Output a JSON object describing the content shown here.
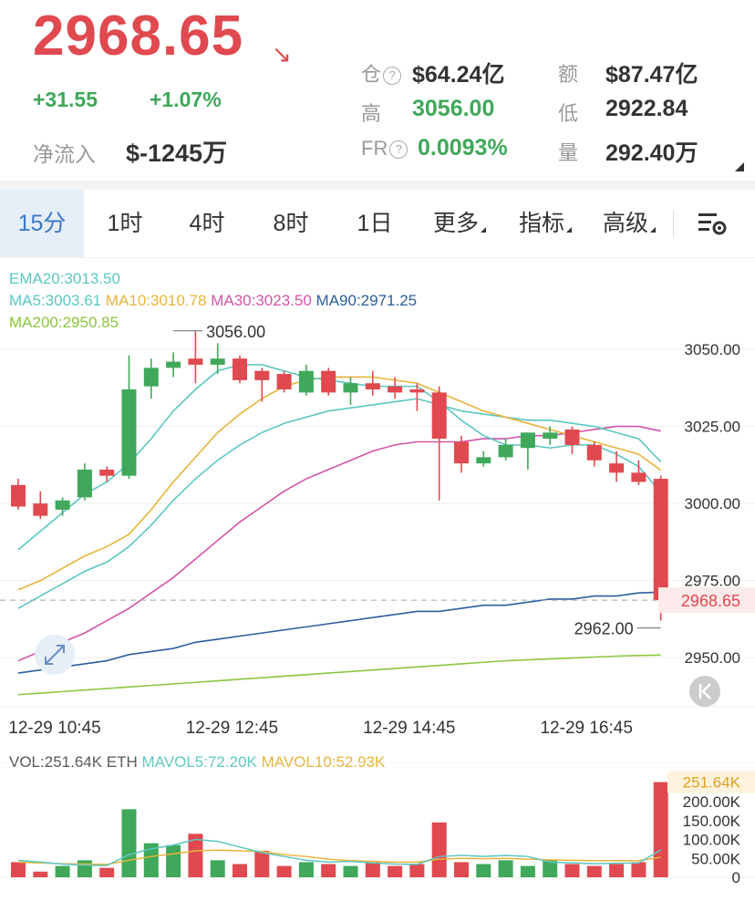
{
  "header": {
    "price": "2968.65",
    "change_abs": "+31.55",
    "change_pct": "+1.07%",
    "net_inflow_label": "净流入",
    "net_inflow_value": "$-1245万"
  },
  "stats": {
    "oi_label": "仓",
    "oi_value": "$64.24亿",
    "amount_label": "额",
    "amount_value": "$87.47亿",
    "high_label": "高",
    "high_value": "3056.00",
    "low_label": "低",
    "low_value": "2922.84",
    "fr_label": "FR",
    "fr_value": "0.0093%",
    "volume_label": "量",
    "volume_value": "292.40万",
    "help_glyph": "?"
  },
  "tabs": [
    {
      "label": "15分",
      "active": true
    },
    {
      "label": "1时"
    },
    {
      "label": "4时"
    },
    {
      "label": "8时"
    },
    {
      "label": "1日"
    },
    {
      "label": "更多",
      "dropdown": true
    },
    {
      "label": "指标",
      "dropdown": true
    },
    {
      "label": "高级",
      "dropdown": true
    }
  ],
  "indicators": {
    "ema20": "EMA20:3013.50",
    "ma5": "MA5:3003.61",
    "ma10": "MA10:3010.78",
    "ma30": "MA30:3023.50",
    "ma90": "MA90:2971.25",
    "ma200": "MA200:2950.85"
  },
  "volume_header": {
    "vol": "VOL:251.64K ETH",
    "mavol5": "MAVOL5:72.20K",
    "mavol10": "MAVOL10:52.93K"
  },
  "colors": {
    "up": "#3fa85a",
    "down": "#e0494f",
    "ema20": "#5bc7c2",
    "ma10": "#e8b43a",
    "ma30": "#d354a8",
    "ma90": "#2b5fa0",
    "ma200": "#8cc63f",
    "accent": "#3a78c4"
  },
  "chart_data": {
    "type": "candlestick",
    "y_ticks": [
      "3050.00",
      "3025.00",
      "3000.00",
      "2975.00",
      "2950.00"
    ],
    "ylim": [
      2940,
      3058
    ],
    "x_tick_labels": [
      "12-29 10:45",
      "12-29 12:45",
      "12-29 14:45",
      "12-29 16:45"
    ],
    "current_price_label": "2968.65",
    "current_price": 2968.65,
    "high_marker": {
      "label": "3056.00",
      "value": 3056.0
    },
    "low_marker": {
      "label": "2962.00",
      "value": 2962.0
    },
    "candles": [
      {
        "o": 3006,
        "h": 3008,
        "l": 2998,
        "c": 2999
      },
      {
        "o": 3000,
        "h": 3004,
        "l": 2995,
        "c": 2996
      },
      {
        "o": 2998,
        "h": 3002,
        "l": 2996,
        "c": 3001
      },
      {
        "o": 3002,
        "h": 3013,
        "l": 3001,
        "c": 3011
      },
      {
        "o": 3011,
        "h": 3012,
        "l": 3007,
        "c": 3009
      },
      {
        "o": 3009,
        "h": 3048,
        "l": 3008,
        "c": 3037
      },
      {
        "o": 3038,
        "h": 3047,
        "l": 3034,
        "c": 3044
      },
      {
        "o": 3044,
        "h": 3049,
        "l": 3041,
        "c": 3046
      },
      {
        "o": 3047,
        "h": 3056,
        "l": 3039,
        "c": 3045
      },
      {
        "o": 3045,
        "h": 3052,
        "l": 3042,
        "c": 3047
      },
      {
        "o": 3047,
        "h": 3048,
        "l": 3039,
        "c": 3040
      },
      {
        "o": 3043,
        "h": 3044,
        "l": 3033,
        "c": 3040
      },
      {
        "o": 3042,
        "h": 3043,
        "l": 3036,
        "c": 3037
      },
      {
        "o": 3036,
        "h": 3045,
        "l": 3035,
        "c": 3043
      },
      {
        "o": 3043,
        "h": 3044,
        "l": 3035,
        "c": 3036
      },
      {
        "o": 3036,
        "h": 3041,
        "l": 3032,
        "c": 3039
      },
      {
        "o": 3039,
        "h": 3043,
        "l": 3035,
        "c": 3037
      },
      {
        "o": 3038,
        "h": 3041,
        "l": 3034,
        "c": 3036
      },
      {
        "o": 3037,
        "h": 3039,
        "l": 3030,
        "c": 3036
      },
      {
        "o": 3036,
        "h": 3038,
        "l": 3001,
        "c": 3021
      },
      {
        "o": 3020,
        "h": 3022,
        "l": 3010,
        "c": 3013
      },
      {
        "o": 3013,
        "h": 3017,
        "l": 3012,
        "c": 3015
      },
      {
        "o": 3015,
        "h": 3021,
        "l": 3014,
        "c": 3019
      },
      {
        "o": 3018,
        "h": 3023,
        "l": 3011,
        "c": 3023
      },
      {
        "o": 3021,
        "h": 3025,
        "l": 3019,
        "c": 3023
      },
      {
        "o": 3024,
        "h": 3025,
        "l": 3016,
        "c": 3019
      },
      {
        "o": 3019,
        "h": 3020,
        "l": 3012,
        "c": 3014
      },
      {
        "o": 3013,
        "h": 3017,
        "l": 3007,
        "c": 3010
      },
      {
        "o": 3010,
        "h": 3014,
        "l": 3006,
        "c": 3007
      },
      {
        "o": 3008,
        "h": 3009,
        "l": 2962,
        "c": 2968.65
      }
    ],
    "lines": {
      "ma5": [
        2985,
        2991,
        2997,
        3003,
        3007,
        3013,
        3021,
        3030,
        3037,
        3043,
        3045,
        3045,
        3043,
        3041,
        3040,
        3039,
        3038,
        3038,
        3038,
        3033,
        3027,
        3022,
        3019,
        3019,
        3018,
        3019,
        3019,
        3016,
        3012,
        3003.61
      ],
      "ema20": [
        2966,
        2970,
        2974,
        2978,
        2981,
        2986,
        2993,
        3001,
        3008,
        3014,
        3019,
        3023,
        3026,
        3028,
        3030,
        3031,
        3032,
        3033,
        3034,
        3032,
        3030,
        3029,
        3028,
        3027,
        3027,
        3026,
        3025,
        3023,
        3021,
        3013.5
      ],
      "ma10": [
        2972,
        2975,
        2979,
        2983,
        2986,
        2990,
        2998,
        3007,
        3015,
        3023,
        3029,
        3034,
        3038,
        3040,
        3041,
        3041,
        3041,
        3040,
        3039,
        3036,
        3033,
        3030,
        3028,
        3026,
        3024,
        3022,
        3020,
        3018,
        3016,
        3010.78
      ],
      "ma30": [
        2949,
        2952,
        2955,
        2958,
        2962,
        2966,
        2971,
        2976,
        2982,
        2988,
        2994,
        2999,
        3004,
        3008,
        3011,
        3014,
        3017,
        3019,
        3020,
        3020,
        3020,
        3021,
        3021,
        3022,
        3022,
        3023,
        3024,
        3025,
        3025,
        3023.5
      ],
      "ma90": [
        2945,
        2946,
        2947,
        2948,
        2949,
        2951,
        2952,
        2953,
        2955,
        2956,
        2957,
        2958,
        2959,
        2960,
        2961,
        2962,
        2963,
        2964,
        2965,
        2965,
        2966,
        2967,
        2967,
        2968,
        2969,
        2969,
        2970,
        2970,
        2971,
        2971.25
      ],
      "ma200": [
        2938,
        2938.5,
        2939,
        2939.5,
        2940,
        2940.5,
        2941,
        2941.5,
        2942,
        2942.5,
        2943,
        2943.5,
        2944,
        2944.5,
        2945,
        2945.5,
        2946,
        2946.5,
        2947,
        2947.5,
        2948,
        2948.5,
        2949,
        2949.3,
        2949.6,
        2949.9,
        2950.2,
        2950.5,
        2950.7,
        2950.85
      ]
    },
    "volume": {
      "y_ticks": [
        "251.64K",
        "200.00K",
        "150.00K",
        "100.00K",
        "50.00K",
        "0"
      ],
      "ylim": [
        0,
        270000
      ],
      "values": [
        40000,
        15000,
        30000,
        45000,
        25000,
        180000,
        90000,
        85000,
        115000,
        45000,
        35000,
        70000,
        30000,
        40000,
        35000,
        30000,
        40000,
        30000,
        35000,
        145000,
        40000,
        35000,
        45000,
        30000,
        45000,
        35000,
        30000,
        35000,
        40000,
        251640
      ],
      "mavol5": [
        45000,
        40000,
        35000,
        32000,
        31000,
        60000,
        75000,
        85000,
        100000,
        95000,
        80000,
        65000,
        55000,
        45000,
        40000,
        42000,
        38000,
        35000,
        34000,
        55000,
        58000,
        55000,
        58000,
        55000,
        40000,
        38000,
        36000,
        37000,
        38000,
        72200
      ],
      "mavol10": [
        40000,
        38000,
        36000,
        35000,
        34000,
        45000,
        55000,
        62000,
        70000,
        72000,
        70000,
        68000,
        60000,
        55000,
        48000,
        44000,
        42000,
        40000,
        40000,
        48000,
        50000,
        49000,
        50000,
        48000,
        46000,
        45000,
        44000,
        44000,
        44000,
        52930
      ]
    }
  }
}
